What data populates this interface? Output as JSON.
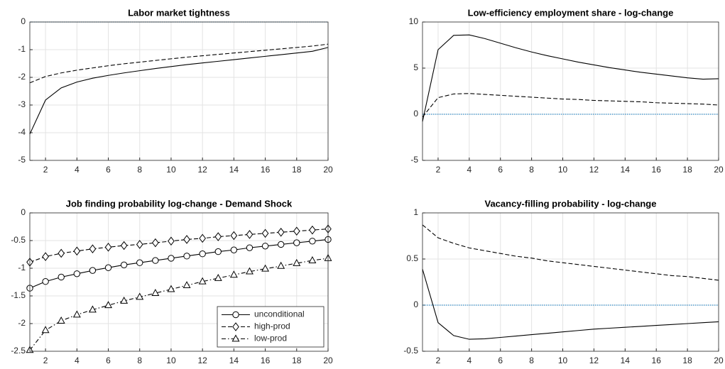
{
  "chart_data": [
    {
      "type": "line",
      "title": "Labor market tightness",
      "x": [
        1,
        2,
        3,
        4,
        5,
        6,
        7,
        8,
        9,
        10,
        11,
        12,
        13,
        14,
        15,
        16,
        17,
        18,
        19,
        20
      ],
      "xlim": [
        1,
        20
      ],
      "xticks": [
        2,
        4,
        6,
        8,
        10,
        12,
        14,
        16,
        18,
        20
      ],
      "ylim": [
        -5,
        0
      ],
      "yticks": [
        -5,
        -4,
        -3,
        -2,
        -1,
        0
      ],
      "grid": true,
      "hline": 0,
      "series": [
        {
          "color": "#000000",
          "dash": "solid",
          "values": [
            -4.05,
            -2.82,
            -2.38,
            -2.17,
            -2.03,
            -1.93,
            -1.84,
            -1.76,
            -1.68,
            -1.61,
            -1.54,
            -1.48,
            -1.42,
            -1.36,
            -1.3,
            -1.24,
            -1.18,
            -1.12,
            -1.06,
            -0.92
          ]
        },
        {
          "color": "#000000",
          "dash": "dashed",
          "values": [
            -2.2,
            -1.97,
            -1.84,
            -1.74,
            -1.66,
            -1.58,
            -1.51,
            -1.45,
            -1.39,
            -1.33,
            -1.27,
            -1.22,
            -1.17,
            -1.12,
            -1.07,
            -1.02,
            -0.97,
            -0.92,
            -0.87,
            -0.8
          ]
        }
      ]
    },
    {
      "type": "line",
      "title": "Low-efficiency employment share - log-change",
      "x": [
        1,
        2,
        3,
        4,
        5,
        6,
        7,
        8,
        9,
        10,
        11,
        12,
        13,
        14,
        15,
        16,
        17,
        18,
        19,
        20
      ],
      "xlim": [
        1,
        20
      ],
      "xticks": [
        2,
        4,
        6,
        8,
        10,
        12,
        14,
        16,
        18,
        20
      ],
      "ylim": [
        -5,
        10
      ],
      "yticks": [
        -5,
        0,
        5,
        10
      ],
      "grid": true,
      "hline": 0,
      "series": [
        {
          "color": "#000000",
          "dash": "solid",
          "values": [
            -0.8,
            7.0,
            8.55,
            8.6,
            8.2,
            7.7,
            7.2,
            6.75,
            6.35,
            6.0,
            5.65,
            5.35,
            5.05,
            4.8,
            4.55,
            4.35,
            4.15,
            3.95,
            3.8,
            3.85
          ]
        },
        {
          "color": "#000000",
          "dash": "dashed",
          "values": [
            -0.3,
            1.8,
            2.2,
            2.25,
            2.15,
            2.05,
            1.95,
            1.85,
            1.75,
            1.65,
            1.6,
            1.5,
            1.45,
            1.4,
            1.35,
            1.25,
            1.2,
            1.15,
            1.1,
            1.0
          ]
        }
      ]
    },
    {
      "type": "line",
      "title": "Job finding probability log-change - Demand Shock",
      "x": [
        1,
        2,
        3,
        4,
        5,
        6,
        7,
        8,
        9,
        10,
        11,
        12,
        13,
        14,
        15,
        16,
        17,
        18,
        19,
        20
      ],
      "xlim": [
        1,
        20
      ],
      "xticks": [
        2,
        4,
        6,
        8,
        10,
        12,
        14,
        16,
        18,
        20
      ],
      "ylim": [
        -2.5,
        0
      ],
      "yticks": [
        -2.5,
        -2,
        -1.5,
        -1,
        -0.5,
        0
      ],
      "grid": true,
      "legend": "lower-right",
      "series": [
        {
          "name": "unconditional",
          "color": "#000000",
          "dash": "solid",
          "marker": "circle",
          "values": [
            -1.36,
            -1.24,
            -1.16,
            -1.1,
            -1.04,
            -0.99,
            -0.94,
            -0.9,
            -0.86,
            -0.82,
            -0.78,
            -0.74,
            -0.7,
            -0.67,
            -0.63,
            -0.6,
            -0.57,
            -0.54,
            -0.51,
            -0.48
          ]
        },
        {
          "name": "high-prod",
          "color": "#000000",
          "dash": "dashed",
          "marker": "diamond",
          "values": [
            -0.89,
            -0.79,
            -0.73,
            -0.69,
            -0.65,
            -0.62,
            -0.59,
            -0.57,
            -0.54,
            -0.51,
            -0.48,
            -0.46,
            -0.43,
            -0.41,
            -0.39,
            -0.37,
            -0.35,
            -0.33,
            -0.31,
            -0.29
          ]
        },
        {
          "name": "low-prod",
          "color": "#000000",
          "dash": "dashdot",
          "marker": "triangle",
          "values": [
            -2.48,
            -2.12,
            -1.95,
            -1.84,
            -1.75,
            -1.67,
            -1.59,
            -1.52,
            -1.45,
            -1.38,
            -1.31,
            -1.24,
            -1.18,
            -1.12,
            -1.06,
            -1.01,
            -0.96,
            -0.91,
            -0.86,
            -0.82
          ]
        }
      ]
    },
    {
      "type": "line",
      "title": "Vacancy-filling probability - log-change",
      "x": [
        1,
        2,
        3,
        4,
        5,
        6,
        7,
        8,
        9,
        10,
        11,
        12,
        13,
        14,
        15,
        16,
        17,
        18,
        19,
        20
      ],
      "xlim": [
        1,
        20
      ],
      "xticks": [
        2,
        4,
        6,
        8,
        10,
        12,
        14,
        16,
        18,
        20
      ],
      "ylim": [
        -0.5,
        1
      ],
      "yticks": [
        -0.5,
        0,
        0.5,
        1
      ],
      "grid": true,
      "hline": 0,
      "series": [
        {
          "color": "#000000",
          "dash": "solid",
          "values": [
            0.39,
            -0.19,
            -0.33,
            -0.37,
            -0.365,
            -0.35,
            -0.335,
            -0.32,
            -0.305,
            -0.29,
            -0.275,
            -0.26,
            -0.25,
            -0.24,
            -0.23,
            -0.22,
            -0.21,
            -0.2,
            -0.19,
            -0.18
          ]
        },
        {
          "color": "#000000",
          "dash": "dashed",
          "values": [
            0.87,
            0.73,
            0.67,
            0.62,
            0.59,
            0.56,
            0.53,
            0.51,
            0.48,
            0.46,
            0.44,
            0.42,
            0.4,
            0.38,
            0.36,
            0.34,
            0.32,
            0.31,
            0.29,
            0.27
          ]
        }
      ]
    }
  ]
}
